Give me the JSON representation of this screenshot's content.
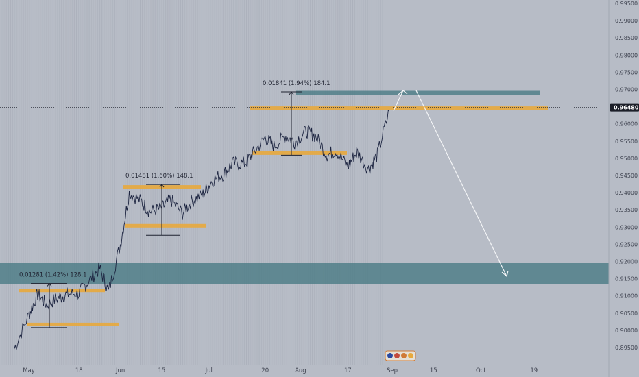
{
  "chart_data": {
    "type": "line",
    "y_axis": {
      "ticks": [
        "0.99500",
        "0.99000",
        "0.98500",
        "0.98000",
        "0.97500",
        "0.97000",
        "0.96500",
        "0.96000",
        "0.95500",
        "0.95000",
        "0.94500",
        "0.94000",
        "0.93500",
        "0.93000",
        "0.92500",
        "0.92000",
        "0.91500",
        "0.91000",
        "0.90500",
        "0.90000",
        "0.89500"
      ],
      "tick_values": [
        0.995,
        0.99,
        0.985,
        0.98,
        0.975,
        0.97,
        0.965,
        0.96,
        0.955,
        0.95,
        0.945,
        0.94,
        0.935,
        0.93,
        0.925,
        0.92,
        0.915,
        0.91,
        0.905,
        0.9,
        0.895
      ],
      "range": [
        0.8925,
        0.9965
      ]
    },
    "x_axis": {
      "ticks": [
        "May",
        "18",
        "Jun",
        "15",
        "Jul",
        "20",
        "Aug",
        "17",
        "Sep",
        "15",
        "Oct",
        "19"
      ]
    },
    "current_price": {
      "label": "0.96480",
      "value": 0.9648
    },
    "series": [
      {
        "x": [
          "Apr 27",
          "May 1",
          "May 4",
          "May 7",
          "May 11",
          "May 14",
          "May 18",
          "May 21",
          "May 25",
          "May 28",
          "Jun 1",
          "Jun 4",
          "Jun 8",
          "Jun 11",
          "Jun 15",
          "Jun 18",
          "Jun 22",
          "Jun 25",
          "Jun 29",
          "Jul 2",
          "Jul 6",
          "Jul 9",
          "Jul 13",
          "Jul 16",
          "Jul 20",
          "Jul 23",
          "Jul 27",
          "Jul 30",
          "Aug 3",
          "Aug 6",
          "Aug 10",
          "Aug 13",
          "Aug 17",
          "Aug 20",
          "Aug 24",
          "Aug 27",
          "Aug 31"
        ],
        "values": [
          0.8945,
          0.9045,
          0.9105,
          0.9075,
          0.9095,
          0.9105,
          0.9108,
          0.914,
          0.918,
          0.9112,
          0.925,
          0.94,
          0.9375,
          0.9345,
          0.9355,
          0.938,
          0.934,
          0.9375,
          0.9395,
          0.9435,
          0.9455,
          0.9485,
          0.9485,
          0.9515,
          0.956,
          0.9535,
          0.9565,
          0.9548,
          0.9578,
          0.9565,
          0.951,
          0.9523,
          0.9475,
          0.952,
          0.9468,
          0.951,
          0.9638
        ]
      }
    ],
    "zones": [
      {
        "kind": "supply",
        "top": 0.9696,
        "bottom": 0.9689
      },
      {
        "kind": "resistance",
        "top": 0.9651,
        "bottom": 0.9644
      },
      {
        "kind": "support",
        "top": 0.952,
        "bottom": 0.9515
      },
      {
        "kind": "resistance",
        "top": 0.9422,
        "bottom": 0.9416
      },
      {
        "kind": "support",
        "top": 0.9309,
        "bottom": 0.9303
      },
      {
        "kind": "support",
        "top": 0.9121,
        "bottom": 0.9115
      },
      {
        "kind": "support",
        "top": 0.9022,
        "bottom": 0.9016
      },
      {
        "kind": "demand",
        "top": 0.9195,
        "bottom": 0.9134
      }
    ],
    "measurements": [
      {
        "label": "0.01281 (1.42%) 128.1",
        "from": 0.9008,
        "to": 0.9136
      },
      {
        "label": "0.01481 (1.60%) 148.1",
        "from": 0.9276,
        "to": 0.9424
      },
      {
        "label": "0.01841 (1.94%) 184.1",
        "from": 0.9509,
        "to": 0.9693
      }
    ],
    "projection": {
      "points": [
        0.9638,
        0.9697,
        0.9697,
        0.9157
      ]
    }
  },
  "colors": {
    "background": "#b7bcc6",
    "price_line": "#1c2440",
    "zone_orange": "#e8a93c",
    "zone_teal": "#4d7d86",
    "arrow": "#f4f5f7",
    "vertical_stripes": "#a8adb8",
    "price_tag": "#1b1e28"
  },
  "icons": [
    "event-flags-icon"
  ]
}
